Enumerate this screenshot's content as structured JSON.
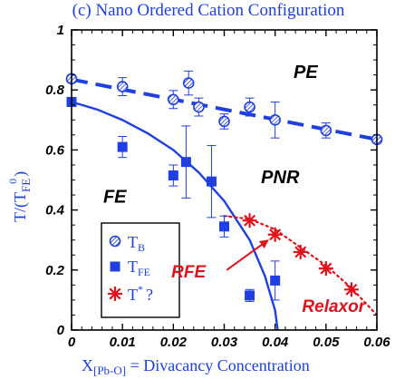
{
  "panel_title": "(c)  Nano Ordered Cation Configuration",
  "colors": {
    "blue": "#1f3fe0",
    "red": "#e0121b",
    "axis": "#000000"
  },
  "chart_data": {
    "type": "scatter",
    "title": "(c)  Nano Ordered Cation Configuration",
    "xlabel": "X[Pb-O] = Divacancy Concentration",
    "xlabel_main": "X",
    "xlabel_sub": "[Pb-O]",
    "xlabel_rest": " = Divacancy Concentration",
    "ylabel": "T/(TFE0)",
    "ylabel_pre": "T/(T",
    "ylabel_sub": "FE",
    "ylabel_sup": "0",
    "ylabel_post": ")",
    "xlim": [
      0,
      0.06
    ],
    "ylim": [
      0,
      1
    ],
    "xticks": [
      "0",
      "0.01",
      "0.02",
      "0.03",
      "0.04",
      "0.05",
      "0.06"
    ],
    "yticks": [
      "0",
      "0.2",
      "0.4",
      "0.6",
      "0.8",
      "1"
    ],
    "grid": false,
    "legend_position": "lower-left",
    "series": [
      {
        "name": "TB",
        "name_main": "T",
        "name_sub": "B",
        "marker": "hatched-circle",
        "color": "#1f3fe0",
        "fit_line": "dashed",
        "fit_line_points": [
          {
            "x": 0,
            "y": 0.835
          },
          {
            "x": 0.06,
            "y": 0.635
          }
        ],
        "points": [
          {
            "x": 0.0,
            "y": 0.837,
            "err": 0.012
          },
          {
            "x": 0.01,
            "y": 0.811,
            "err": 0.03
          },
          {
            "x": 0.02,
            "y": 0.768,
            "err": 0.03
          },
          {
            "x": 0.023,
            "y": 0.823,
            "err": 0.04
          },
          {
            "x": 0.025,
            "y": 0.743,
            "err": 0.03
          },
          {
            "x": 0.03,
            "y": 0.695,
            "err": 0.025
          },
          {
            "x": 0.035,
            "y": 0.743,
            "err": 0.03
          },
          {
            "x": 0.04,
            "y": 0.7,
            "err": 0.06
          },
          {
            "x": 0.05,
            "y": 0.665,
            "err": 0.025
          },
          {
            "x": 0.06,
            "y": 0.635,
            "err": 0.01
          }
        ]
      },
      {
        "name": "TFE",
        "name_main": "T",
        "name_sub": "FE",
        "marker": "filled-square",
        "color": "#1f3fe0",
        "fit_line": "solid",
        "fit_line_points": [
          {
            "x": 0,
            "y": 0.76
          },
          {
            "x": 0.005,
            "y": 0.735
          },
          {
            "x": 0.01,
            "y": 0.7
          },
          {
            "x": 0.015,
            "y": 0.655
          },
          {
            "x": 0.02,
            "y": 0.6
          },
          {
            "x": 0.025,
            "y": 0.525
          },
          {
            "x": 0.03,
            "y": 0.43
          },
          {
            "x": 0.035,
            "y": 0.3
          },
          {
            "x": 0.038,
            "y": 0.18
          },
          {
            "x": 0.04,
            "y": 0.065
          },
          {
            "x": 0.0405,
            "y": 0.0
          }
        ],
        "points": [
          {
            "x": 0.0,
            "y": 0.76,
            "err": 0.012
          },
          {
            "x": 0.01,
            "y": 0.61,
            "err": 0.035
          },
          {
            "x": 0.02,
            "y": 0.515,
            "err": 0.035
          },
          {
            "x": 0.0225,
            "y": 0.56,
            "err": 0.12
          },
          {
            "x": 0.0275,
            "y": 0.495,
            "err": 0.12
          },
          {
            "x": 0.03,
            "y": 0.345,
            "err": 0.035
          },
          {
            "x": 0.035,
            "y": 0.115,
            "err": 0.02
          },
          {
            "x": 0.04,
            "y": 0.165,
            "err": 0.065
          }
        ]
      },
      {
        "name": "T* ?",
        "name_main": "T",
        "name_sup": "*",
        "name_rest": "?",
        "marker": "asterisk",
        "color": "#e0121b",
        "fit_line": "dotted",
        "fit_line_points": [
          {
            "x": 0.03,
            "y": 0.38
          },
          {
            "x": 0.035,
            "y": 0.37
          },
          {
            "x": 0.04,
            "y": 0.335
          },
          {
            "x": 0.045,
            "y": 0.275
          },
          {
            "x": 0.05,
            "y": 0.215
          },
          {
            "x": 0.055,
            "y": 0.14
          },
          {
            "x": 0.06,
            "y": 0.05
          }
        ],
        "points": [
          {
            "x": 0.035,
            "y": 0.365
          },
          {
            "x": 0.04,
            "y": 0.318
          },
          {
            "x": 0.045,
            "y": 0.26
          },
          {
            "x": 0.05,
            "y": 0.205
          },
          {
            "x": 0.055,
            "y": 0.135
          }
        ]
      }
    ],
    "annotations": [
      {
        "text": "PE",
        "style": "region",
        "x": 0.046,
        "y": 0.84
      },
      {
        "text": "PNR",
        "style": "region",
        "x": 0.041,
        "y": 0.49
      },
      {
        "text": "FE",
        "style": "region",
        "x": 0.0085,
        "y": 0.425
      },
      {
        "text": "RFE",
        "style": "red",
        "x": 0.023,
        "y": 0.175
      },
      {
        "text": "Relaxor",
        "style": "red",
        "x": 0.0515,
        "y": 0.06
      }
    ],
    "arrow": {
      "from_x": 0.0305,
      "from_y": 0.2,
      "to_x": 0.0385,
      "to_y": 0.298
    }
  }
}
